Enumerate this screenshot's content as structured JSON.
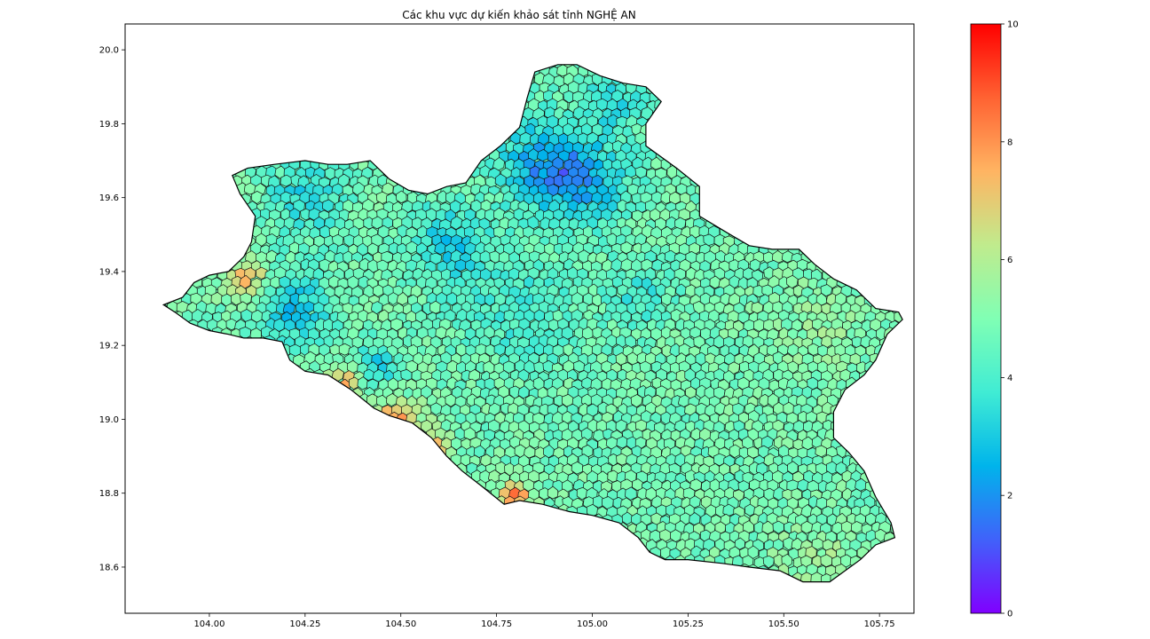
{
  "chart_data": {
    "type": "heatmap",
    "title": "Các khu vực dự kiến khảo sát tỉnh NGHỆ AN",
    "xlabel": "",
    "ylabel": "",
    "xlim": [
      103.78,
      105.84
    ],
    "ylim": [
      18.475,
      20.07
    ],
    "x_ticks": [
      104.0,
      104.25,
      104.5,
      104.75,
      105.0,
      105.25,
      105.5,
      105.75
    ],
    "x_tick_labels": [
      "104.00",
      "104.25",
      "104.50",
      "104.75",
      "105.00",
      "105.25",
      "105.50",
      "105.75"
    ],
    "y_ticks": [
      18.6,
      18.8,
      19.0,
      19.2,
      19.4,
      19.6,
      19.8,
      20.0
    ],
    "y_tick_labels": [
      "18.6",
      "18.8",
      "19.0",
      "19.2",
      "19.4",
      "19.6",
      "19.8",
      "20.0"
    ],
    "colorbar": {
      "colormap": "rainbow",
      "min": 0,
      "max": 10,
      "ticks": [
        0,
        2,
        4,
        6,
        8,
        10
      ],
      "tick_labels": [
        "0",
        "2",
        "4",
        "6",
        "8",
        "10"
      ]
    },
    "region_outline_lonlat": [
      [
        103.88,
        19.31
      ],
      [
        103.93,
        19.33
      ],
      [
        103.96,
        19.37
      ],
      [
        104.0,
        19.39
      ],
      [
        104.05,
        19.4
      ],
      [
        104.09,
        19.44
      ],
      [
        104.11,
        19.48
      ],
      [
        104.12,
        19.55
      ],
      [
        104.08,
        19.61
      ],
      [
        104.06,
        19.66
      ],
      [
        104.1,
        19.68
      ],
      [
        104.17,
        19.69
      ],
      [
        104.25,
        19.7
      ],
      [
        104.31,
        19.69
      ],
      [
        104.36,
        19.69
      ],
      [
        104.42,
        19.7
      ],
      [
        104.47,
        19.65
      ],
      [
        104.52,
        19.62
      ],
      [
        104.57,
        19.61
      ],
      [
        104.62,
        19.63
      ],
      [
        104.67,
        19.64
      ],
      [
        104.71,
        19.7
      ],
      [
        104.76,
        19.74
      ],
      [
        104.81,
        19.79
      ],
      [
        104.83,
        19.87
      ],
      [
        104.85,
        19.94
      ],
      [
        104.91,
        19.96
      ],
      [
        104.96,
        19.96
      ],
      [
        105.02,
        19.93
      ],
      [
        105.08,
        19.91
      ],
      [
        105.14,
        19.9
      ],
      [
        105.18,
        19.86
      ],
      [
        105.14,
        19.8
      ],
      [
        105.14,
        19.74
      ],
      [
        105.22,
        19.68
      ],
      [
        105.28,
        19.63
      ],
      [
        105.28,
        19.55
      ],
      [
        105.36,
        19.5
      ],
      [
        105.41,
        19.47
      ],
      [
        105.47,
        19.46
      ],
      [
        105.54,
        19.46
      ],
      [
        105.58,
        19.42
      ],
      [
        105.63,
        19.38
      ],
      [
        105.69,
        19.35
      ],
      [
        105.74,
        19.3
      ],
      [
        105.8,
        19.29
      ],
      [
        105.81,
        19.27
      ],
      [
        105.77,
        19.23
      ],
      [
        105.74,
        19.16
      ],
      [
        105.71,
        19.12
      ],
      [
        105.66,
        19.08
      ],
      [
        105.63,
        19.02
      ],
      [
        105.63,
        18.95
      ],
      [
        105.67,
        18.91
      ],
      [
        105.71,
        18.86
      ],
      [
        105.74,
        18.79
      ],
      [
        105.78,
        18.72
      ],
      [
        105.79,
        18.68
      ],
      [
        105.74,
        18.66
      ],
      [
        105.7,
        18.62
      ],
      [
        105.66,
        18.59
      ],
      [
        105.62,
        18.56
      ],
      [
        105.55,
        18.56
      ],
      [
        105.49,
        18.59
      ],
      [
        105.41,
        18.6
      ],
      [
        105.34,
        18.61
      ],
      [
        105.25,
        18.62
      ],
      [
        105.19,
        18.62
      ],
      [
        105.15,
        18.64
      ],
      [
        105.12,
        18.68
      ],
      [
        105.07,
        18.72
      ],
      [
        105.0,
        18.74
      ],
      [
        104.94,
        18.75
      ],
      [
        104.87,
        18.77
      ],
      [
        104.81,
        18.78
      ],
      [
        104.77,
        18.77
      ],
      [
        104.71,
        18.82
      ],
      [
        104.66,
        18.86
      ],
      [
        104.62,
        18.9
      ],
      [
        104.58,
        18.95
      ],
      [
        104.53,
        18.99
      ],
      [
        104.47,
        19.01
      ],
      [
        104.43,
        19.03
      ],
      [
        104.37,
        19.08
      ],
      [
        104.31,
        19.12
      ],
      [
        104.25,
        19.13
      ],
      [
        104.21,
        19.16
      ],
      [
        104.19,
        19.21
      ],
      [
        104.14,
        19.22
      ],
      [
        104.09,
        19.22
      ],
      [
        104.05,
        19.23
      ],
      [
        104.0,
        19.24
      ],
      [
        103.95,
        19.26
      ],
      [
        103.91,
        19.29
      ],
      [
        103.88,
        19.31
      ]
    ],
    "value_field_hotspots": [
      {
        "lon": 104.87,
        "lat": 19.7,
        "value": 2.6,
        "radius": 0.12
      },
      {
        "lon": 104.98,
        "lat": 19.64,
        "value": 2.8,
        "radius": 0.12
      },
      {
        "lon": 104.62,
        "lat": 19.48,
        "value": 2.9,
        "radius": 0.1
      },
      {
        "lon": 104.22,
        "lat": 19.3,
        "value": 2.9,
        "radius": 0.1
      },
      {
        "lon": 104.25,
        "lat": 19.6,
        "value": 3.3,
        "radius": 0.1
      },
      {
        "lon": 104.43,
        "lat": 19.14,
        "value": 3.0,
        "radius": 0.06
      },
      {
        "lon": 105.06,
        "lat": 19.86,
        "value": 3.3,
        "radius": 0.08
      },
      {
        "lon": 104.8,
        "lat": 19.3,
        "value": 3.8,
        "radius": 0.15
      },
      {
        "lon": 105.13,
        "lat": 19.34,
        "value": 3.6,
        "radius": 0.08
      },
      {
        "lon": 104.48,
        "lat": 18.97,
        "value": 8.6,
        "radius": 0.07
      },
      {
        "lon": 104.57,
        "lat": 18.9,
        "value": 8.8,
        "radius": 0.05
      },
      {
        "lon": 104.35,
        "lat": 19.1,
        "value": 7.4,
        "radius": 0.05
      },
      {
        "lon": 104.1,
        "lat": 19.38,
        "value": 7.2,
        "radius": 0.06
      },
      {
        "lon": 104.8,
        "lat": 18.79,
        "value": 8.2,
        "radius": 0.04
      },
      {
        "lon": 105.6,
        "lat": 18.6,
        "value": 5.6,
        "radius": 0.12
      },
      {
        "lon": 105.6,
        "lat": 19.25,
        "value": 5.4,
        "radius": 0.12
      }
    ],
    "base_value": 4.8,
    "grid": false,
    "legend": "none"
  }
}
